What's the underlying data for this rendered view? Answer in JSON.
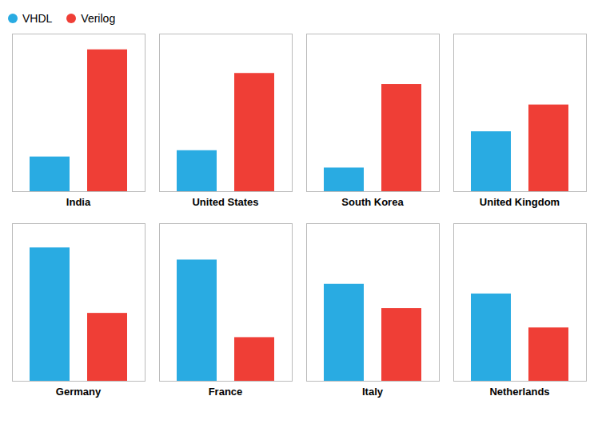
{
  "chart_data": [
    {
      "type": "bar",
      "xlabel": "India",
      "categories": [
        null
      ],
      "series": [
        {
          "name": "VHDL",
          "color": "#29ABE2",
          "values": [
            22
          ]
        },
        {
          "name": "Verilog",
          "color": "#EF3E36",
          "values": [
            90
          ]
        }
      ],
      "ylim": [
        0,
        100
      ],
      "yticks": [],
      "grid": false,
      "tick_labels": false,
      "legend": "upper left"
    },
    {
      "type": "bar",
      "xlabel": "United States",
      "categories": [
        null
      ],
      "series": [
        {
          "name": "VHDL",
          "color": "#29ABE2",
          "values": [
            26
          ]
        },
        {
          "name": "Verilog",
          "color": "#EF3E36",
          "values": [
            75
          ]
        }
      ],
      "ylim": [
        0,
        100
      ],
      "yticks": [],
      "grid": false,
      "tick_labels": false
    },
    {
      "type": "bar",
      "xlabel": "South Korea",
      "categories": [
        null
      ],
      "series": [
        {
          "name": "VHDL",
          "color": "#29ABE2",
          "values": [
            15
          ]
        },
        {
          "name": "Verilog",
          "color": "#EF3E36",
          "values": [
            68
          ]
        }
      ],
      "ylim": [
        0,
        100
      ],
      "yticks": [],
      "grid": false,
      "tick_labels": false
    },
    {
      "type": "bar",
      "xlabel": "United Kingdom",
      "categories": [
        null
      ],
      "series": [
        {
          "name": "VHDL",
          "color": "#29ABE2",
          "values": [
            38
          ]
        },
        {
          "name": "Verilog",
          "color": "#EF3E36",
          "values": [
            55
          ]
        }
      ],
      "ylim": [
        0,
        100
      ],
      "yticks": [],
      "grid": false,
      "tick_labels": false
    },
    {
      "type": "bar",
      "xlabel": "Germany",
      "categories": [
        null
      ],
      "series": [
        {
          "name": "VHDL",
          "color": "#29ABE2",
          "values": [
            55
          ]
        },
        {
          "name": "Verilog",
          "color": "#EF3E36",
          "values": [
            28
          ]
        }
      ],
      "ylim": [
        0,
        65
      ],
      "yticks": [],
      "grid": false,
      "tick_labels": false
    },
    {
      "type": "bar",
      "xlabel": "France",
      "categories": [
        null
      ],
      "series": [
        {
          "name": "VHDL",
          "color": "#29ABE2",
          "values": [
            50
          ]
        },
        {
          "name": "Verilog",
          "color": "#EF3E36",
          "values": [
            18
          ]
        }
      ],
      "ylim": [
        0,
        65
      ],
      "yticks": [],
      "grid": false,
      "tick_labels": false
    },
    {
      "type": "bar",
      "xlabel": "Italy",
      "categories": [
        null
      ],
      "series": [
        {
          "name": "VHDL",
          "color": "#29ABE2",
          "values": [
            40
          ]
        },
        {
          "name": "Verilog",
          "color": "#EF3E36",
          "values": [
            30
          ]
        }
      ],
      "ylim": [
        0,
        65
      ],
      "yticks": [],
      "grid": false,
      "tick_labels": false
    },
    {
      "type": "bar",
      "xlabel": "Netherlands",
      "categories": [
        null
      ],
      "series": [
        {
          "name": "VHDL",
          "color": "#29ABE2",
          "values": [
            36
          ]
        },
        {
          "name": "Verilog",
          "color": "#EF3E36",
          "values": [
            22
          ]
        }
      ],
      "ylim": [
        0,
        65
      ],
      "yticks": [],
      "grid": false,
      "tick_labels": false
    }
  ]
}
